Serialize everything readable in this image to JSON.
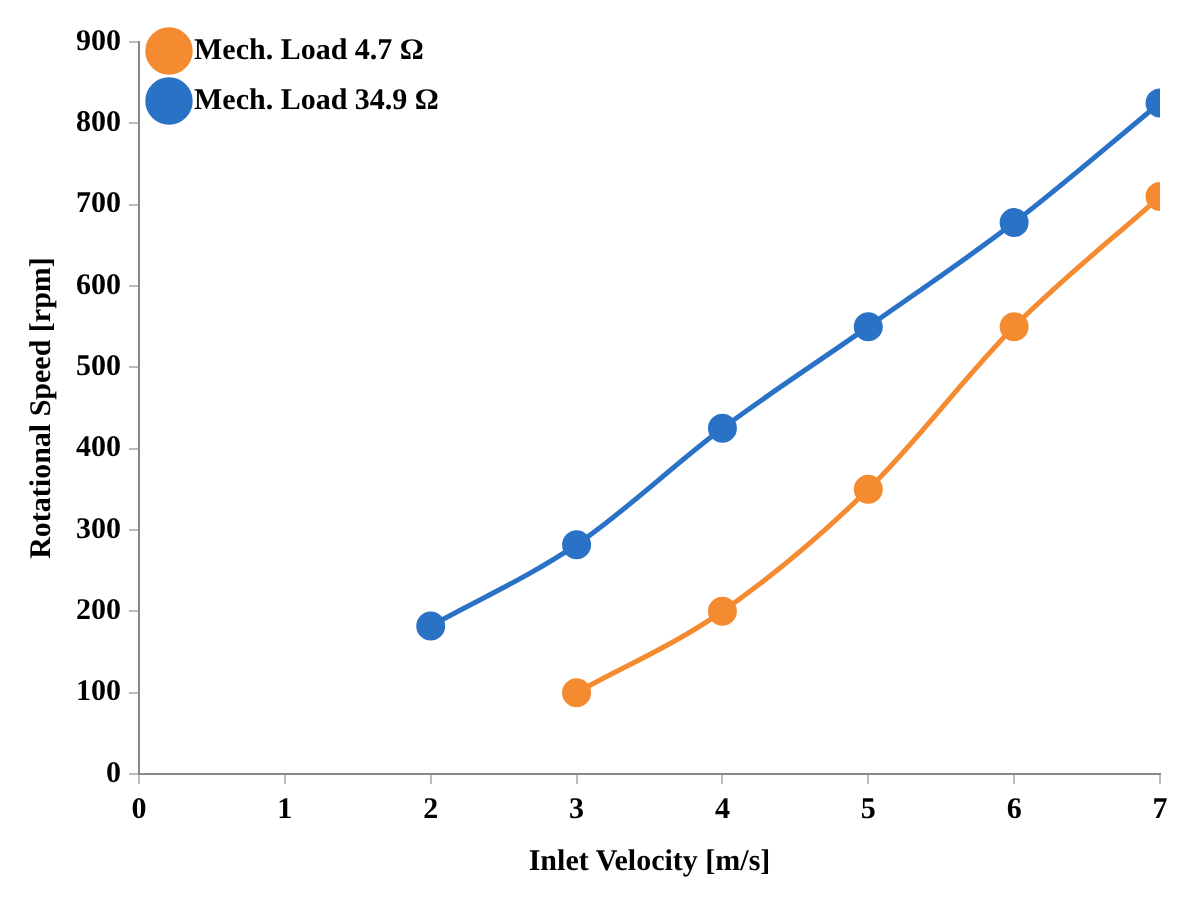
{
  "chart_data": {
    "type": "line",
    "xlabel": "Inlet Velocity [m/s]",
    "ylabel": "Rotational Speed [rpm]",
    "xlim": [
      0,
      7
    ],
    "xticks": [
      0,
      1,
      2,
      3,
      4,
      5,
      6,
      7
    ],
    "ylim": [
      0,
      900
    ],
    "yticks": [
      0,
      100,
      200,
      300,
      400,
      500,
      600,
      700,
      800,
      900
    ],
    "grid": false,
    "legend": "top left",
    "marker": "circle",
    "line_style": "solid",
    "series": [
      {
        "name": "Mech. Load 4.7 Ω",
        "color": "#f58b30",
        "x": [
          3,
          4,
          5,
          6,
          7
        ],
        "values": [
          100,
          200,
          350,
          550,
          710
        ]
      },
      {
        "name": "Mech. Load 34.9 Ω",
        "color": "#2a72c6",
        "x": [
          2,
          3,
          4,
          5,
          6,
          7
        ],
        "values": [
          182,
          282,
          425,
          550,
          678,
          825
        ]
      }
    ]
  }
}
